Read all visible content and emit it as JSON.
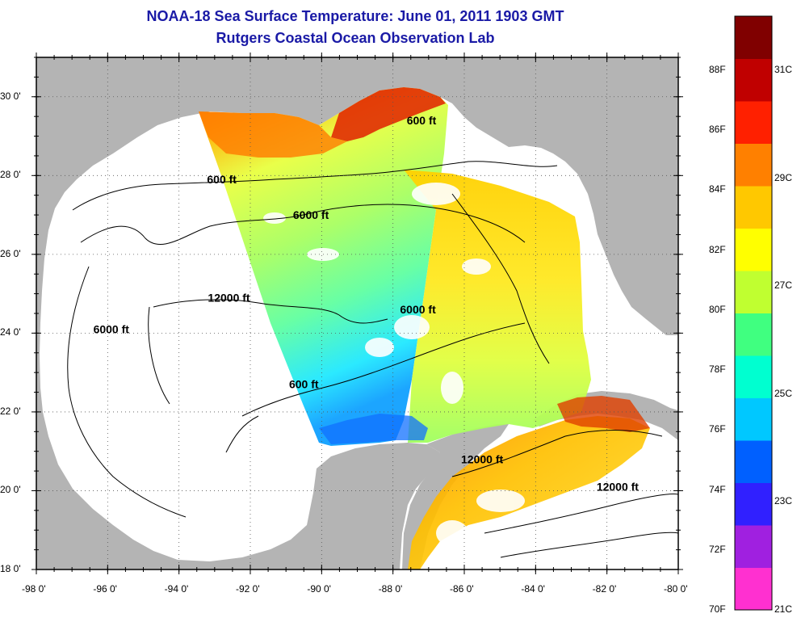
{
  "title": "NOAA-18 Sea Surface Temperature:  June 01, 2011 1903 GMT",
  "subtitle": "Rutgers Coastal Ocean Observation Lab",
  "map": {
    "lon_range": [
      -98,
      -80
    ],
    "lat_range": [
      18,
      31
    ],
    "lon_ticks": [
      "-98 0'",
      "-96 0'",
      "-94 0'",
      "-92 0'",
      "-90 0'",
      "-88 0'",
      "-86 0'",
      "-84 0'",
      "-82 0'",
      "-80 0'"
    ],
    "lat_ticks": [
      "18 0'",
      "20 0'",
      "22 0'",
      "24 0'",
      "26 0'",
      "28 0'",
      "30 0'"
    ],
    "grid": "dotted",
    "land_color": "#b4b4b4",
    "no_data_color": "#ffffff",
    "contour_labels": [
      {
        "text": "600 ft",
        "lon": -92.8,
        "lat": 27.8
      },
      {
        "text": "600 ft",
        "lon": -87.2,
        "lat": 29.3
      },
      {
        "text": "6000 ft",
        "lon": -90.3,
        "lat": 26.9
      },
      {
        "text": "6000 ft",
        "lon": -95.9,
        "lat": 24.0
      },
      {
        "text": "6000 ft",
        "lon": -87.3,
        "lat": 24.5
      },
      {
        "text": "12000 ft",
        "lon": -92.6,
        "lat": 24.8
      },
      {
        "text": "600 ft",
        "lon": -90.5,
        "lat": 22.6
      },
      {
        "text": "12000 ft",
        "lon": -85.5,
        "lat": 20.7
      },
      {
        "text": "12000 ft",
        "lon": -81.7,
        "lat": 20.0
      }
    ]
  },
  "colorbar": {
    "fahrenheit": [
      "88F",
      "86F",
      "84F",
      "82F",
      "80F",
      "78F",
      "76F",
      "74F",
      "72F",
      "70F"
    ],
    "celsius": [
      "31C",
      "29C",
      "27C",
      "25C",
      "23C",
      "21C"
    ],
    "colors": [
      "#ff30d0",
      "#a020e0",
      "#3020ff",
      "#0060ff",
      "#00c8ff",
      "#00ffd0",
      "#40ff80",
      "#c0ff30",
      "#ffff00",
      "#ffc800",
      "#ff8000",
      "#ff2000",
      "#c00000",
      "#800000"
    ]
  }
}
